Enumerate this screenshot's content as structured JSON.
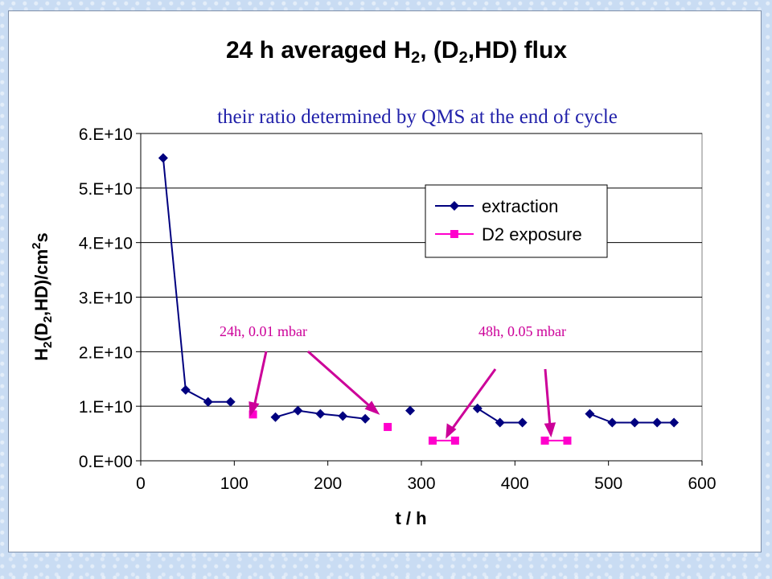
{
  "chart_data": {
    "type": "line",
    "title_parts": {
      "p1": "24 h averaged H",
      "sub1": "2",
      "p2": ", (D",
      "sub2": "2",
      "p3": ",HD) flux"
    },
    "subtitle": "their ratio determined by QMS at the end of cycle",
    "xlabel": "t / h",
    "ylabel_parts": {
      "p1": "H",
      "sub1": "2",
      "p2": "(D",
      "sub2": "2",
      "p3": ",HD)/cm",
      "sup": "2",
      "p4": "s"
    },
    "xlim": [
      0,
      600
    ],
    "ylim": [
      0,
      60000000000.0
    ],
    "x_ticks": [
      "0",
      "100",
      "200",
      "300",
      "400",
      "500",
      "600"
    ],
    "y_ticks": [
      "0.E+00",
      "1.E+10",
      "2.E+10",
      "3.E+10",
      "4.E+10",
      "5.E+10",
      "6.E+10"
    ],
    "grid": "horizontal",
    "legend_position": "top-right",
    "series": [
      {
        "name": "extraction",
        "color": "#00007f",
        "marker": "diamond",
        "segments": [
          [
            [
              24,
              55500000000.0
            ],
            [
              48,
              13000000000.0
            ],
            [
              72,
              10800000000.0
            ],
            [
              96,
              10800000000.0
            ]
          ],
          [
            [
              144,
              8000000000.0
            ],
            [
              168,
              9200000000.0
            ],
            [
              192,
              8600000000.0
            ],
            [
              216,
              8200000000.0
            ],
            [
              240,
              7700000000.0
            ]
          ],
          [
            [
              288,
              9200000000.0
            ]
          ],
          [
            [
              360,
              9600000000.0
            ],
            [
              384,
              7000000000.0
            ],
            [
              408,
              7000000000.0
            ]
          ],
          [
            [
              480,
              8600000000.0
            ],
            [
              504,
              7000000000.0
            ],
            [
              528,
              7000000000.0
            ],
            [
              552,
              7000000000.0
            ],
            [
              570,
              7000000000.0
            ]
          ]
        ]
      },
      {
        "name": "D2 exposure",
        "color": "#ff00cc",
        "marker": "square",
        "segments": [
          [
            [
              120,
              8500000000.0
            ]
          ],
          [
            [
              264,
              6200000000.0
            ]
          ],
          [
            [
              312,
              3700000000.0
            ],
            [
              336,
              3700000000.0
            ]
          ],
          [
            [
              432,
              3700000000.0
            ],
            [
              456,
              3700000000.0
            ]
          ]
        ]
      }
    ],
    "annotations": [
      {
        "text": "24h, 0.01 mbar",
        "color": "#cc0099"
      },
      {
        "text": "48h, 0.05 mbar",
        "color": "#cc0099"
      }
    ]
  }
}
